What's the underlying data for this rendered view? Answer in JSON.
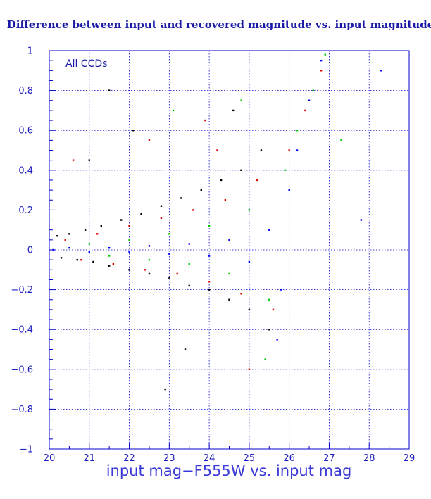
{
  "chart_data": {
    "type": "scatter",
    "title": "Difference between input and recovered magnitude vs. input magnitude",
    "xlabel": "input mag−F555W vs. input mag",
    "ylabel": "",
    "annotation": "All CCDs",
    "xlim": [
      20,
      29
    ],
    "ylim": [
      -1,
      1
    ],
    "x_ticks": [
      "20",
      "21",
      "22",
      "23",
      "24",
      "25",
      "26",
      "27",
      "28",
      "29"
    ],
    "y_ticks": [
      "−1",
      "−0.8",
      "−0.6",
      "−0.4",
      "−0.2",
      "0",
      "0.2",
      "0.4",
      "0.6",
      "0.8",
      "1"
    ],
    "grid": true,
    "colors": {
      "frame": "#0000cc",
      "grid": "#0000cc",
      "text": "#1a1aa6"
    },
    "series": [
      {
        "color": "#000000",
        "points": [
          [
            20.2,
            0.07
          ],
          [
            20.3,
            -0.04
          ],
          [
            20.5,
            0.08
          ],
          [
            20.7,
            -0.05
          ],
          [
            20.9,
            0.1
          ],
          [
            21.1,
            -0.06
          ],
          [
            21.3,
            0.12
          ],
          [
            21.5,
            -0.08
          ],
          [
            21.8,
            0.15
          ],
          [
            22.0,
            -0.1
          ],
          [
            22.3,
            0.18
          ],
          [
            22.5,
            -0.12
          ],
          [
            22.8,
            0.22
          ],
          [
            23.0,
            -0.14
          ],
          [
            23.3,
            0.26
          ],
          [
            23.5,
            -0.18
          ],
          [
            23.8,
            0.3
          ],
          [
            24.0,
            -0.2
          ],
          [
            24.3,
            0.35
          ],
          [
            24.5,
            -0.25
          ],
          [
            24.8,
            0.4
          ],
          [
            25.0,
            -0.3
          ],
          [
            25.3,
            0.5
          ],
          [
            25.5,
            -0.4
          ],
          [
            21.0,
            0.45
          ],
          [
            22.1,
            0.6
          ],
          [
            23.4,
            -0.5
          ],
          [
            24.6,
            0.7
          ],
          [
            21.5,
            0.8
          ],
          [
            22.9,
            -0.7
          ]
        ]
      },
      {
        "color": "#e00000",
        "points": [
          [
            20.4,
            0.05
          ],
          [
            20.8,
            -0.05
          ],
          [
            21.2,
            0.08
          ],
          [
            21.6,
            -0.07
          ],
          [
            22.0,
            0.12
          ],
          [
            22.4,
            -0.1
          ],
          [
            22.8,
            0.16
          ],
          [
            23.2,
            -0.12
          ],
          [
            23.6,
            0.2
          ],
          [
            24.0,
            -0.16
          ],
          [
            24.4,
            0.25
          ],
          [
            24.8,
            -0.22
          ],
          [
            25.2,
            0.35
          ],
          [
            25.6,
            -0.3
          ],
          [
            26.0,
            0.5
          ],
          [
            26.4,
            0.7
          ],
          [
            26.8,
            0.9
          ],
          [
            22.5,
            0.55
          ],
          [
            23.9,
            0.65
          ],
          [
            20.6,
            0.45
          ],
          [
            25.0,
            -0.6
          ],
          [
            24.2,
            0.5
          ]
        ]
      },
      {
        "color": "#00cc00",
        "points": [
          [
            21.0,
            0.03
          ],
          [
            21.5,
            -0.03
          ],
          [
            22.0,
            0.05
          ],
          [
            22.5,
            -0.05
          ],
          [
            23.0,
            0.08
          ],
          [
            23.5,
            -0.07
          ],
          [
            24.0,
            0.12
          ],
          [
            24.5,
            -0.12
          ],
          [
            25.0,
            0.2
          ],
          [
            25.5,
            -0.25
          ],
          [
            25.9,
            0.4
          ],
          [
            26.2,
            0.6
          ],
          [
            26.6,
            0.8
          ],
          [
            26.9,
            0.98
          ],
          [
            25.4,
            -0.55
          ],
          [
            27.3,
            0.55
          ],
          [
            23.1,
            0.7
          ],
          [
            24.8,
            0.75
          ]
        ]
      },
      {
        "color": "#0000ff",
        "points": [
          [
            20.1,
            0.0
          ],
          [
            20.5,
            0.01
          ],
          [
            21.0,
            -0.01
          ],
          [
            21.5,
            0.01
          ],
          [
            22.0,
            -0.01
          ],
          [
            22.5,
            0.02
          ],
          [
            23.0,
            -0.02
          ],
          [
            23.5,
            0.03
          ],
          [
            24.0,
            -0.03
          ],
          [
            24.5,
            0.05
          ],
          [
            25.0,
            -0.06
          ],
          [
            25.5,
            0.1
          ],
          [
            25.8,
            -0.2
          ],
          [
            26.0,
            0.3
          ],
          [
            26.2,
            0.5
          ],
          [
            26.5,
            0.75
          ],
          [
            26.8,
            0.95
          ],
          [
            25.7,
            -0.45
          ],
          [
            27.8,
            0.15
          ],
          [
            28.3,
            0.9
          ]
        ]
      }
    ]
  }
}
